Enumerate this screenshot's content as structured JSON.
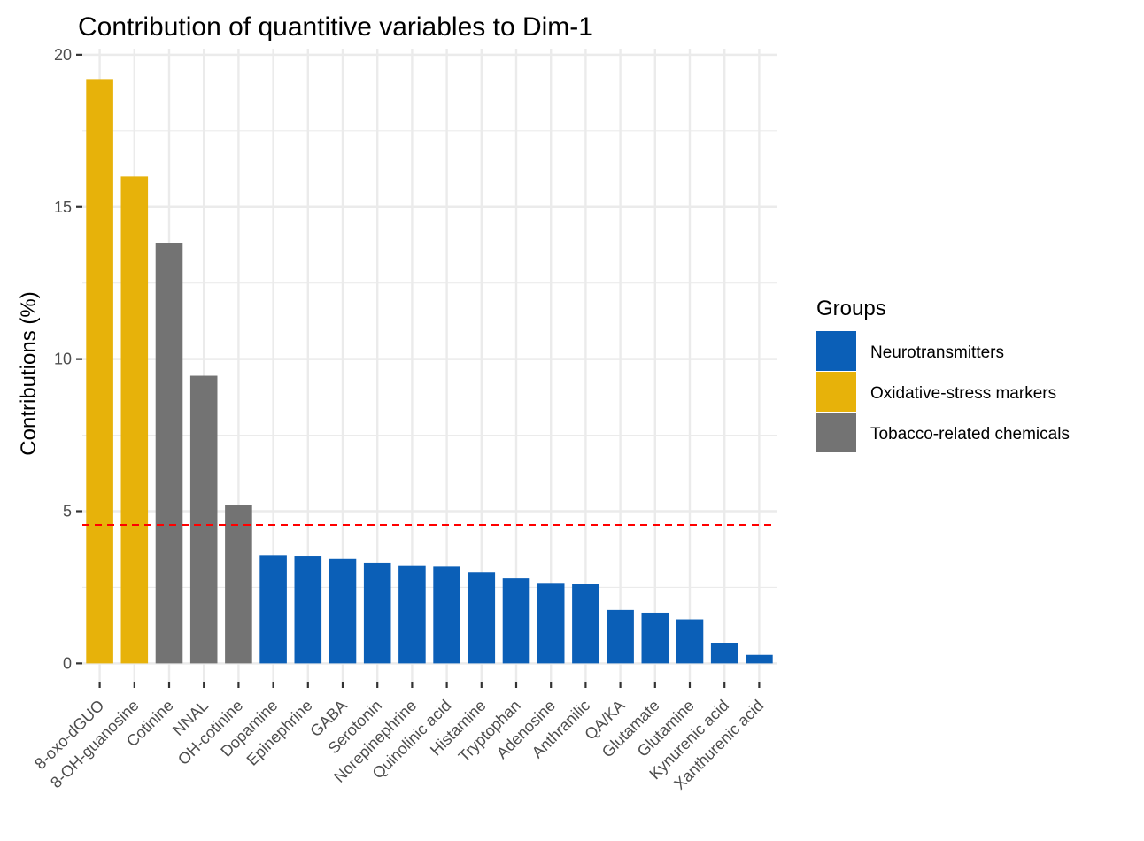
{
  "chart_data": {
    "type": "bar",
    "title": "Contribution of quantitive variables to Dim-1",
    "xlabel": "",
    "ylabel": "Contributions (%)",
    "ylim": [
      -0.6,
      20.2
    ],
    "yticks": [
      0,
      5,
      10,
      15,
      20
    ],
    "grid": true,
    "categories": [
      "8-oxo-dGUO",
      "8-OH-guanosine",
      "Cotinine",
      "NNAL",
      "OH-cotinine",
      "Dopamine",
      "Epinephrine",
      "GABA",
      "Serotonin",
      "Norepinephrine",
      "Quinolinic acid",
      "Histamine",
      "Tryptophan",
      "Adenosine",
      "Anthranilic",
      "QA/KA",
      "Glutamate",
      "Glutamine",
      "Kynurenic acid",
      "Xanthurenic acid"
    ],
    "values": [
      19.2,
      16.0,
      13.8,
      9.45,
      5.2,
      3.55,
      3.53,
      3.45,
      3.3,
      3.22,
      3.2,
      3.0,
      2.8,
      2.62,
      2.6,
      1.76,
      1.67,
      1.45,
      0.68,
      0.28
    ],
    "groups": [
      "Oxidative-stress markers",
      "Oxidative-stress markers",
      "Tobacco-related chemicals",
      "Tobacco-related chemicals",
      "Tobacco-related chemicals",
      "Neurotransmitters",
      "Neurotransmitters",
      "Neurotransmitters",
      "Neurotransmitters",
      "Neurotransmitters",
      "Neurotransmitters",
      "Neurotransmitters",
      "Neurotransmitters",
      "Neurotransmitters",
      "Neurotransmitters",
      "Neurotransmitters",
      "Neurotransmitters",
      "Neurotransmitters",
      "Neurotransmitters",
      "Neurotransmitters"
    ],
    "reference_line": {
      "value": 4.55,
      "color": "#ff0000",
      "style": "dashed"
    },
    "legend": {
      "title": "Groups",
      "position": "right",
      "items": [
        {
          "name": "Neurotransmitters",
          "color": "#0b5fb7"
        },
        {
          "name": "Oxidative-stress markers",
          "color": "#e7b20a"
        },
        {
          "name": "Tobacco-related chemicals",
          "color": "#737373"
        }
      ]
    }
  }
}
